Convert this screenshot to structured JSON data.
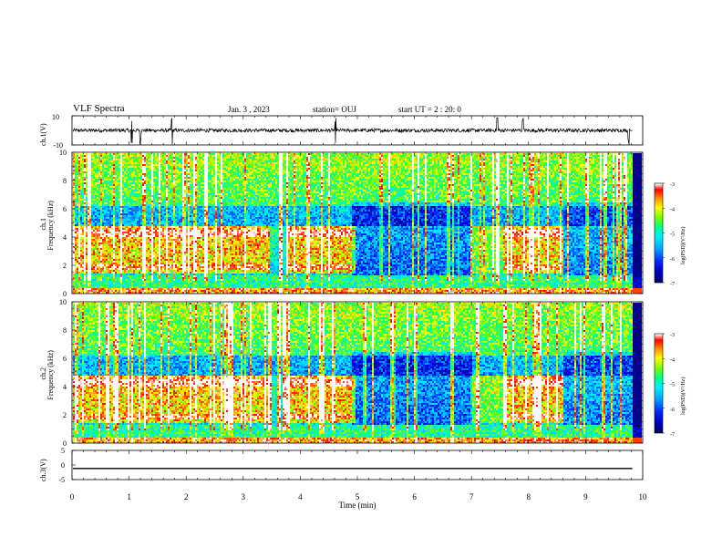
{
  "header": {
    "title": "VLF Spectra",
    "date": "Jan. 3 , 2023",
    "station": "station= OUJ",
    "start": "start UT = 2 : 20: 0"
  },
  "chart_data": [
    {
      "type": "line",
      "panel": "ch1-waveform",
      "ylabel": "ch.1(V)",
      "ylim": [
        -10,
        10
      ],
      "y_ticks": [
        "10",
        "-10"
      ],
      "x_range_min": [
        0,
        10
      ],
      "data_end_min": 9.82,
      "noise_amplitude_v": 2.5,
      "spikes_min": [
        1.05,
        1.2,
        1.75,
        4.62,
        7.45,
        7.9,
        9.75
      ]
    },
    {
      "type": "heatmap",
      "panel": "ch1-spectrogram",
      "ylabel": "Frequency (kHz)",
      "channel_label": "ch.1",
      "ylim": [
        0,
        10
      ],
      "y_ticks": [
        "0",
        "2",
        "4",
        "6",
        "8",
        "10"
      ],
      "colorbar_label": "log(PSD)(V²/Hz)",
      "colorbar_range": [
        -7,
        -3
      ],
      "colorbar_ticks": [
        "-3",
        "-4",
        "-5",
        "-6",
        "-7"
      ],
      "colorscale": [
        "#000080",
        "#0000ff",
        "#00a0ff",
        "#00ffff",
        "#00ff80",
        "#80ff00",
        "#ffff00",
        "#ff8000",
        "#ff0000",
        "#ffffff"
      ],
      "enhanced_band_khz": [
        1.5,
        4.8
      ],
      "active_intervals_min": [
        [
          0,
          3.45
        ],
        [
          3.75,
          4.95
        ],
        [
          7.55,
          8.6
        ]
      ],
      "weak_intervals_min": [
        [
          6.95,
          7.55
        ]
      ],
      "data_end_min": 9.82
    },
    {
      "type": "heatmap",
      "panel": "ch2-spectrogram",
      "ylabel": "Frequency (kHz)",
      "channel_label": "ch.2",
      "ylim": [
        0,
        10
      ],
      "y_ticks": [
        "0",
        "2",
        "4",
        "6",
        "8",
        "10"
      ],
      "colorbar_label": "log(PSD)(V²/Hz)",
      "colorbar_range": [
        -7,
        -3
      ],
      "colorbar_ticks": [
        "-3",
        "-4",
        "-5",
        "-6",
        "-7"
      ],
      "enhanced_band_khz": [
        1.5,
        4.8
      ],
      "active_intervals_min": [
        [
          0,
          3.45
        ],
        [
          3.75,
          4.95
        ],
        [
          7.55,
          8.6
        ]
      ],
      "weak_intervals_min": [
        [
          6.95,
          7.55
        ]
      ],
      "data_end_min": 9.82
    },
    {
      "type": "line",
      "panel": "ch3-waveform",
      "ylabel": "ch.3(V)",
      "ylim": [
        -5,
        5
      ],
      "y_ticks": [
        "5",
        "0",
        "-5"
      ],
      "values_constant_v": -1.2,
      "data_end_min": 9.82,
      "xlabel": "Time (min)",
      "xlim": [
        0,
        10
      ],
      "x_ticks": [
        "0",
        "1",
        "2",
        "3",
        "4",
        "5",
        "6",
        "7",
        "8",
        "9",
        "10"
      ]
    }
  ]
}
